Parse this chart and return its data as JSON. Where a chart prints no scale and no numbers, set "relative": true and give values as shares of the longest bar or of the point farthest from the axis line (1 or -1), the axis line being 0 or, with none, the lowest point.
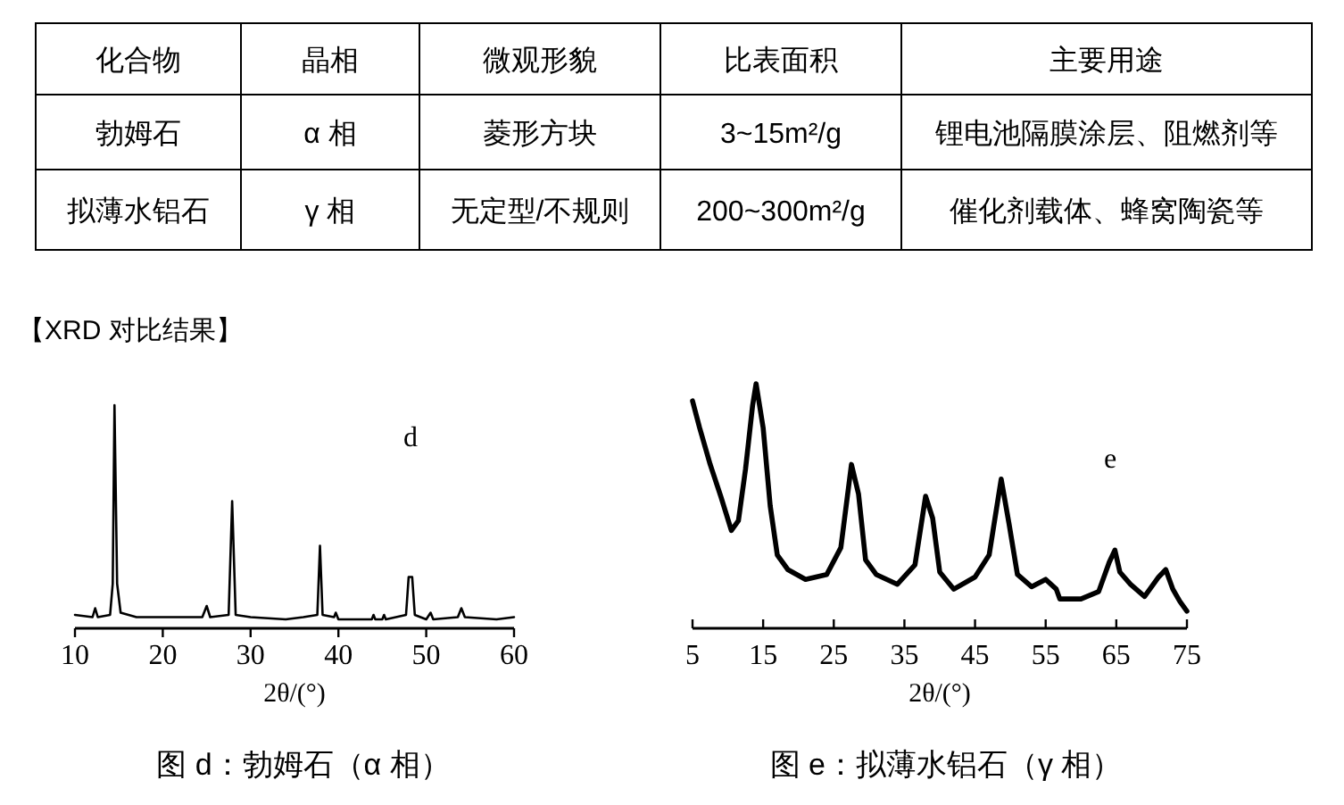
{
  "chart_data": [
    {
      "type": "other",
      "annotations": [
        "化合物",
        "晶相",
        "微观形貌",
        "比表面积",
        "主要用途",
        "勃姆石",
        "α 相",
        "菱形方块",
        "3~15m²/g",
        "锂电池隔膜涂层、阻燃剂等",
        "拟薄水铝石",
        "γ 相",
        "无定型/不规则",
        "200~300m²/g",
        "催化剂载体、蜂窝陶瓷等",
        "【XRD 对比结果】"
      ]
    },
    {
      "type": "line",
      "relative": true,
      "xlabel": "2θ/(°)",
      "xlim": [
        10,
        60
      ],
      "xticks": [
        10,
        20,
        30,
        40,
        50,
        60
      ],
      "annotations": [
        "d",
        "图 d：勃姆石（α 相）"
      ],
      "x": [
        10,
        12,
        12.3,
        12.6,
        14,
        14.3,
        14.5,
        14.8,
        15.2,
        17,
        20,
        22,
        24.5,
        25,
        25.4,
        27.5,
        27.9,
        28.3,
        30,
        34,
        36,
        37.6,
        37.9,
        38.2,
        39.5,
        39.7,
        40,
        43.8,
        44,
        44.2,
        45,
        45.2,
        45.4,
        47.7,
        48,
        48.4,
        48.7,
        50,
        50.5,
        50.8,
        53.6,
        54,
        54.4,
        58,
        60
      ],
      "series": [
        {
          "color": "#000000",
          "values": [
            0.06,
            0.05,
            0.09,
            0.05,
            0.06,
            0.2,
            1.0,
            0.2,
            0.07,
            0.05,
            0.05,
            0.05,
            0.05,
            0.1,
            0.05,
            0.06,
            0.57,
            0.06,
            0.05,
            0.04,
            0.05,
            0.06,
            0.37,
            0.06,
            0.05,
            0.07,
            0.04,
            0.04,
            0.06,
            0.04,
            0.04,
            0.06,
            0.04,
            0.06,
            0.23,
            0.23,
            0.06,
            0.04,
            0.07,
            0.04,
            0.05,
            0.09,
            0.05,
            0.04,
            0.05
          ]
        }
      ]
    },
    {
      "type": "line",
      "relative": true,
      "xlabel": "2θ/(°)",
      "xlim": [
        5,
        75
      ],
      "xticks": [
        5,
        15,
        25,
        35,
        45,
        55,
        65,
        75
      ],
      "annotations": [
        "e",
        "图 e：拟薄水铝石（γ 相）"
      ],
      "x": [
        5,
        6,
        7.5,
        9,
        10.5,
        11.5,
        12.5,
        13.5,
        14,
        15,
        16,
        17,
        18.5,
        21,
        24,
        26,
        27.5,
        28.5,
        29.5,
        31,
        34,
        36.5,
        38,
        39,
        40,
        42,
        45,
        47,
        48.7,
        49.8,
        51,
        53,
        55,
        56.5,
        57,
        60,
        62.5,
        64,
        64.8,
        65.5,
        67,
        69,
        71,
        72,
        73,
        74,
        75
      ],
      "series": [
        {
          "color": "#000000",
          "values": [
            0.93,
            0.82,
            0.67,
            0.54,
            0.4,
            0.44,
            0.65,
            0.91,
            1.0,
            0.82,
            0.5,
            0.3,
            0.24,
            0.2,
            0.22,
            0.33,
            0.67,
            0.55,
            0.28,
            0.22,
            0.18,
            0.26,
            0.54,
            0.45,
            0.23,
            0.16,
            0.21,
            0.3,
            0.61,
            0.43,
            0.22,
            0.17,
            0.2,
            0.16,
            0.12,
            0.12,
            0.15,
            0.27,
            0.32,
            0.23,
            0.18,
            0.13,
            0.21,
            0.24,
            0.16,
            0.11,
            0.07
          ]
        }
      ]
    }
  ]
}
